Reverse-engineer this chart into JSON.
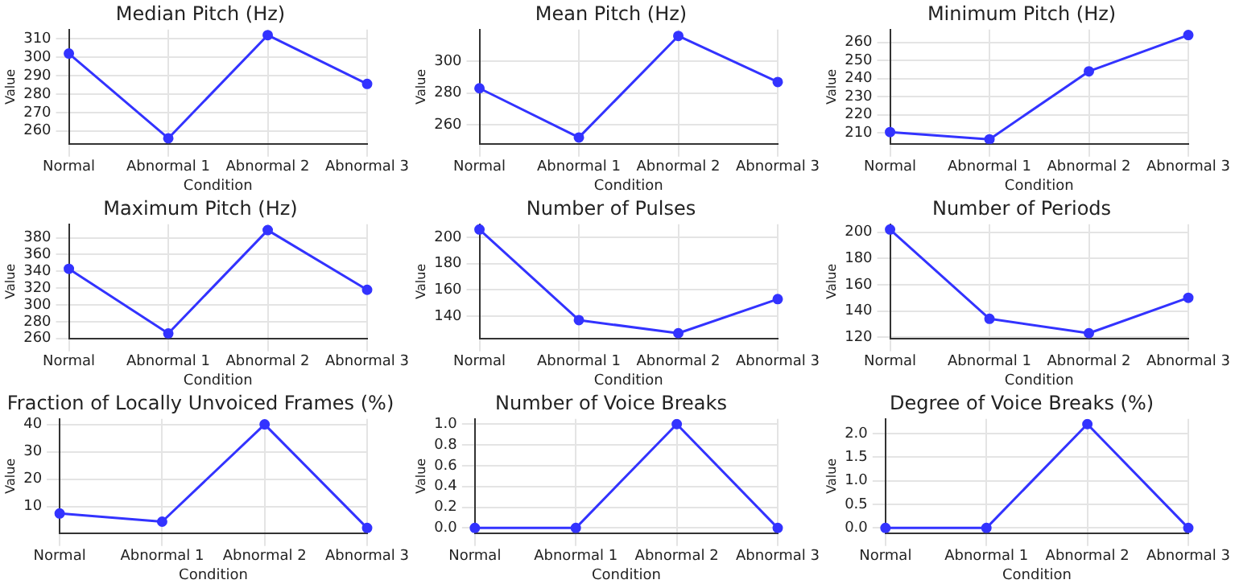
{
  "chart_data": [
    {
      "type": "line",
      "title": "Median Pitch (Hz)",
      "xlabel": "Condition",
      "ylabel": "Value",
      "categories": [
        "Normal",
        "Abnormal 1",
        "Abnormal 2",
        "Abnormal 3"
      ],
      "series": [
        {
          "color": "#3333ff",
          "values": [
            302,
            256,
            312,
            285.5
          ]
        }
      ],
      "ylim": [
        253,
        315
      ],
      "yticks": [
        260,
        270,
        280,
        290,
        300,
        310
      ],
      "grid": true,
      "marker": "circle"
    },
    {
      "type": "line",
      "title": "Mean Pitch (Hz)",
      "xlabel": "Condition",
      "ylabel": "Value",
      "categories": [
        "Normal",
        "Abnormal 1",
        "Abnormal 2",
        "Abnormal 3"
      ],
      "series": [
        {
          "color": "#3333ff",
          "values": [
            283,
            252,
            316,
            287
          ]
        }
      ],
      "ylim": [
        248,
        320
      ],
      "yticks": [
        260,
        280,
        300
      ],
      "grid": true,
      "marker": "circle"
    },
    {
      "type": "line",
      "title": "Minimum Pitch (Hz)",
      "xlabel": "Condition",
      "ylabel": "Value",
      "categories": [
        "Normal",
        "Abnormal 1",
        "Abnormal 2",
        "Abnormal 3"
      ],
      "series": [
        {
          "color": "#3333ff",
          "values": [
            210.5,
            206.5,
            244,
            264
          ]
        }
      ],
      "ylim": [
        204,
        267
      ],
      "yticks": [
        210,
        220,
        230,
        240,
        250,
        260
      ],
      "grid": true,
      "marker": "circle"
    },
    {
      "type": "line",
      "title": "Maximum Pitch (Hz)",
      "xlabel": "Condition",
      "ylabel": "Value",
      "categories": [
        "Normal",
        "Abnormal 1",
        "Abnormal 2",
        "Abnormal 3"
      ],
      "series": [
        {
          "color": "#3333ff",
          "values": [
            343,
            266,
            389,
            318
          ]
        }
      ],
      "ylim": [
        260,
        396
      ],
      "yticks": [
        260,
        280,
        300,
        320,
        340,
        360,
        380
      ],
      "grid": true,
      "marker": "circle"
    },
    {
      "type": "line",
      "title": "Number of Pulses",
      "xlabel": "Condition",
      "ylabel": "Value",
      "categories": [
        "Normal",
        "Abnormal 1",
        "Abnormal 2",
        "Abnormal 3"
      ],
      "series": [
        {
          "color": "#3333ff",
          "values": [
            206,
            137,
            127,
            153
          ]
        }
      ],
      "ylim": [
        123,
        210
      ],
      "yticks": [
        140,
        160,
        180,
        200
      ],
      "grid": true,
      "marker": "circle"
    },
    {
      "type": "line",
      "title": "Number of Periods",
      "xlabel": "Condition",
      "ylabel": "Value",
      "categories": [
        "Normal",
        "Abnormal 1",
        "Abnormal 2",
        "Abnormal 3"
      ],
      "series": [
        {
          "color": "#3333ff",
          "values": [
            202,
            134,
            123,
            150
          ]
        }
      ],
      "ylim": [
        119,
        206
      ],
      "yticks": [
        120,
        140,
        160,
        180,
        200
      ],
      "grid": true,
      "marker": "circle"
    },
    {
      "type": "line",
      "title": "Fraction of Locally Unvoiced Frames (%)",
      "xlabel": "Condition",
      "ylabel": "Value",
      "categories": [
        "Normal",
        "Abnormal 1",
        "Abnormal 2",
        "Abnormal 3"
      ],
      "series": [
        {
          "color": "#3333ff",
          "values": [
            7.5,
            4.5,
            40,
            2.2
          ]
        }
      ],
      "ylim": [
        0.3,
        42
      ],
      "yticks": [
        10,
        20,
        30,
        40
      ],
      "grid": true,
      "marker": "circle"
    },
    {
      "type": "line",
      "title": "Number of Voice Breaks",
      "xlabel": "Condition",
      "ylabel": "Value",
      "categories": [
        "Normal",
        "Abnormal 1",
        "Abnormal 2",
        "Abnormal 3"
      ],
      "series": [
        {
          "color": "#3333ff",
          "values": [
            0,
            0,
            1,
            0
          ]
        }
      ],
      "ylim": [
        -0.05,
        1.05
      ],
      "yticks": [
        {
          "value": 0,
          "label": "0.0"
        },
        0.2,
        0.4,
        0.6,
        0.8,
        {
          "value": 1,
          "label": "1.0"
        }
      ],
      "grid": true,
      "marker": "circle"
    },
    {
      "type": "line",
      "title": "Degree of Voice Breaks (%)",
      "xlabel": "Condition",
      "ylabel": "Value",
      "categories": [
        "Normal",
        "Abnormal 1",
        "Abnormal 2",
        "Abnormal 3"
      ],
      "series": [
        {
          "color": "#3333ff",
          "values": [
            0,
            0,
            2.2,
            0
          ]
        }
      ],
      "ylim": [
        -0.11,
        2.31
      ],
      "yticks": [
        {
          "value": 0,
          "label": "0.0"
        },
        0.5,
        {
          "value": 1,
          "label": "1.0"
        },
        1.5,
        {
          "value": 2,
          "label": "2.0"
        }
      ],
      "grid": true,
      "marker": "circle"
    }
  ]
}
